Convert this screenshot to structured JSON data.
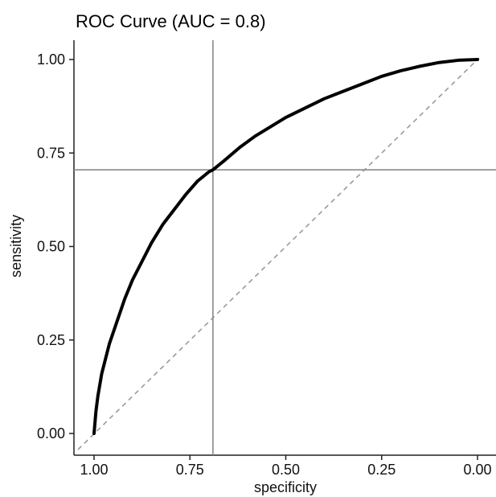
{
  "chart_data": {
    "type": "line",
    "title": "ROC Curve (AUC = 0.8)",
    "xlabel": "specificity",
    "ylabel": "sensitivity",
    "x_reversed": true,
    "xlim": [
      1.0,
      0.0
    ],
    "ylim": [
      0.0,
      1.0
    ],
    "x_ticks": [
      1.0,
      0.75,
      0.5,
      0.25,
      0.0
    ],
    "x_tick_labels": [
      "1.00",
      "0.75",
      "0.50",
      "0.25",
      "0.00"
    ],
    "y_ticks": [
      0.0,
      0.25,
      0.5,
      0.75,
      1.0
    ],
    "y_tick_labels": [
      "0.00",
      "0.25",
      "0.50",
      "0.75",
      "1.00"
    ],
    "grid": false,
    "series": [
      {
        "x": [
          1.0,
          0.995,
          0.99,
          0.98,
          0.96,
          0.94,
          0.92,
          0.9,
          0.88,
          0.85,
          0.82,
          0.79,
          0.76,
          0.73,
          0.7,
          0.69,
          0.66,
          0.62,
          0.58,
          0.54,
          0.5,
          0.45,
          0.4,
          0.35,
          0.3,
          0.25,
          0.2,
          0.15,
          0.1,
          0.05,
          0.0
        ],
        "y": [
          0.0,
          0.06,
          0.1,
          0.16,
          0.24,
          0.3,
          0.36,
          0.41,
          0.45,
          0.51,
          0.56,
          0.6,
          0.64,
          0.675,
          0.7,
          0.705,
          0.73,
          0.765,
          0.795,
          0.82,
          0.845,
          0.87,
          0.895,
          0.915,
          0.935,
          0.955,
          0.97,
          0.982,
          0.992,
          0.998,
          1.0
        ]
      }
    ],
    "reference_line": {
      "x": [
        1.0,
        0.0
      ],
      "y": [
        0.0,
        1.0
      ],
      "style": "dashed",
      "color": "#9a9a9a"
    },
    "cutoff_point": {
      "specificity": 0.69,
      "sensitivity": 0.705
    },
    "colors": {
      "curve": "#000000",
      "crosshair": "#8a8a8a",
      "axis": "#222222",
      "background": "#ffffff"
    }
  }
}
